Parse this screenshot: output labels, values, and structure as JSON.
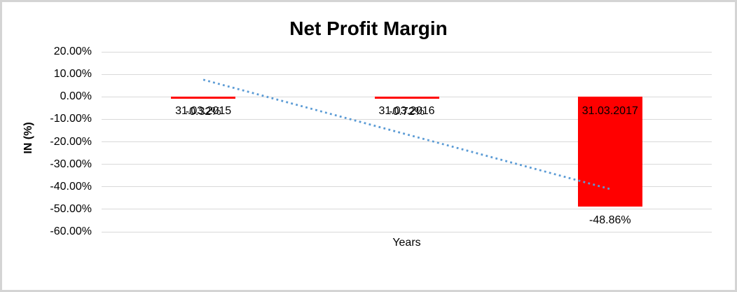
{
  "chart_data": {
    "type": "bar",
    "title": "Net Profit Margin",
    "xlabel": "Years",
    "ylabel": "IN (%)",
    "categories": [
      "31.03.2015",
      "31.03.2016",
      "31.03.2017"
    ],
    "values": [
      -0.32,
      -0.72,
      -48.86
    ],
    "data_labels": [
      "-0.32%",
      "-0.72%",
      "-48.86%"
    ],
    "yticks": [
      "20.00%",
      "10.00%",
      "0.00%",
      "-10.00%",
      "-20.00%",
      "-30.00%",
      "-40.00%",
      "-50.00%",
      "-60.00%"
    ],
    "ylim": [
      -60,
      20
    ],
    "ytick_step": 10,
    "grid": true,
    "legend": false,
    "bar_color": "#FF0000",
    "gridline_color": "#D9D9D9",
    "text_color": "#000000",
    "trendline": {
      "style": "dotted",
      "color": "#5B9BD5",
      "start_value": 7.6,
      "end_value": -41.0
    }
  }
}
